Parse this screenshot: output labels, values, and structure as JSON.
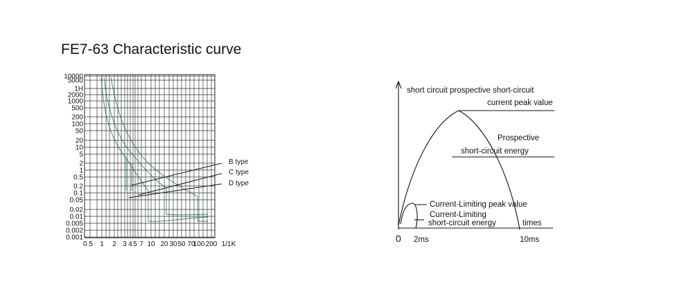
{
  "title": "FE7-63  Characteristic curve",
  "left_chart": {
    "y_labels": [
      "10000",
      "5000",
      "1H",
      "2000",
      "1000",
      "500",
      "200",
      "100",
      "50",
      "20",
      "10",
      "5",
      "2",
      "1",
      "0.5",
      "0.2",
      "0.1",
      "0.05",
      "0.02",
      "0.01",
      "0.005",
      "0.002",
      "0.001"
    ],
    "x_labels": [
      "0.5",
      "1",
      "2",
      "3",
      "4",
      "5",
      "7",
      "10",
      "20",
      "30",
      "50",
      "70",
      "100",
      "200",
      "1/1K"
    ],
    "curve_labels": [
      "B type",
      "C type",
      "D type"
    ]
  },
  "right_diagram": {
    "labels": [
      "short circuit prospective short-circuit",
      "current peak value",
      "Prospective",
      "short-circuit energy",
      "Current-Limiting peak value",
      "Current-Limiting",
      "short-circuit energy",
      "times",
      "0",
      "2ms",
      "10ms"
    ]
  }
}
